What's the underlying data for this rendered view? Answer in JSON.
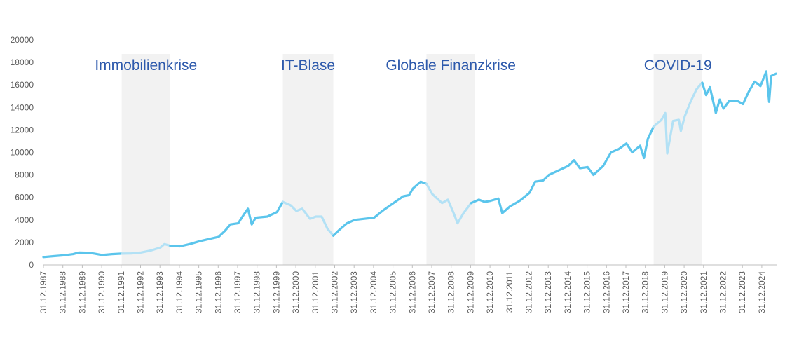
{
  "colors": {
    "line": "#5bc5ec",
    "line_crisis": "#b3e1f5",
    "band": "#f2f2f2",
    "label": "#2e5aac",
    "axis": "#bfbfbf",
    "tick_text": "#595959"
  },
  "chart_data": {
    "type": "line",
    "title": "",
    "xlabel": "",
    "ylabel": "",
    "ylim": [
      0,
      20000
    ],
    "y_ticks": [
      0,
      2000,
      4000,
      6000,
      8000,
      10000,
      12000,
      14000,
      16000,
      18000,
      20000
    ],
    "x_tick_labels": [
      "31.12.1987",
      "31.12.1988",
      "31.12.1989",
      "31.12.1990",
      "31.12.1991",
      "31.12.1992",
      "31.12.1993",
      "31.12.1994",
      "31.12.1995",
      "31.12.1996",
      "31.12.1997",
      "31.12.1998",
      "31.12.1999",
      "31.12.2000",
      "31.12.2001",
      "31.12.2002",
      "31.12.2003",
      "31.12.2004",
      "31.12.2005",
      "31.12.2006",
      "31.12.2007",
      "31.12.2008",
      "31.12.2009",
      "31.12.2010",
      "31.12.2011",
      "31.12.2012",
      "31.12.2013",
      "31.12.2014",
      "31.12.2015",
      "31.12.2016",
      "31.12.2017",
      "31.12.2018",
      "31.12.2019",
      "31.12.2020",
      "31.12.2021",
      "31.12.2022",
      "31.12.2023",
      "31.12.2024"
    ],
    "xlim": [
      1987.97,
      2025.7
    ],
    "grid": false,
    "crises": [
      {
        "label": "Immobilienkrise",
        "start": 1992.0,
        "end": 1994.5
      },
      {
        "label": "IT-Blase",
        "start": 2000.3,
        "end": 2002.9
      },
      {
        "label": "Globale Finanzkrise",
        "start": 2007.7,
        "end": 2010.2
      },
      {
        "label": "COVID-19",
        "start": 2019.4,
        "end": 2021.9
      }
    ],
    "series": [
      {
        "points": [
          [
            1987.97,
            700
          ],
          [
            1988.5,
            780
          ],
          [
            1989.0,
            850
          ],
          [
            1989.5,
            960
          ],
          [
            1989.8,
            1100
          ],
          [
            1990.3,
            1080
          ],
          [
            1990.6,
            1000
          ],
          [
            1991.0,
            880
          ],
          [
            1991.5,
            960
          ],
          [
            1992.0,
            1000
          ],
          [
            1992.5,
            1020
          ],
          [
            1993.0,
            1100
          ],
          [
            1993.5,
            1280
          ],
          [
            1994.0,
            1550
          ],
          [
            1994.2,
            1850
          ],
          [
            1994.5,
            1700
          ],
          [
            1995.0,
            1650
          ],
          [
            1995.5,
            1850
          ],
          [
            1996.0,
            2100
          ],
          [
            1996.5,
            2300
          ],
          [
            1997.0,
            2500
          ],
          [
            1997.3,
            3000
          ],
          [
            1997.6,
            3600
          ],
          [
            1998.0,
            3700
          ],
          [
            1998.3,
            4500
          ],
          [
            1998.5,
            5000
          ],
          [
            1998.7,
            3600
          ],
          [
            1998.9,
            4200
          ],
          [
            1999.5,
            4300
          ],
          [
            2000.0,
            4700
          ],
          [
            2000.3,
            5600
          ],
          [
            2000.7,
            5300
          ],
          [
            2001.0,
            4800
          ],
          [
            2001.3,
            5000
          ],
          [
            2001.7,
            4100
          ],
          [
            2002.0,
            4300
          ],
          [
            2002.3,
            4300
          ],
          [
            2002.6,
            3200
          ],
          [
            2002.9,
            2600
          ],
          [
            2003.2,
            3100
          ],
          [
            2003.6,
            3700
          ],
          [
            2004.0,
            4000
          ],
          [
            2004.5,
            4100
          ],
          [
            2005.0,
            4200
          ],
          [
            2005.5,
            4900
          ],
          [
            2006.0,
            5500
          ],
          [
            2006.5,
            6100
          ],
          [
            2006.8,
            6200
          ],
          [
            2007.0,
            6800
          ],
          [
            2007.4,
            7400
          ],
          [
            2007.7,
            7200
          ],
          [
            2008.0,
            6300
          ],
          [
            2008.5,
            5500
          ],
          [
            2008.8,
            5800
          ],
          [
            2009.1,
            4600
          ],
          [
            2009.3,
            3700
          ],
          [
            2009.6,
            4600
          ],
          [
            2010.0,
            5500
          ],
          [
            2010.4,
            5800
          ],
          [
            2010.7,
            5600
          ],
          [
            2011.0,
            5700
          ],
          [
            2011.4,
            5900
          ],
          [
            2011.6,
            4600
          ],
          [
            2012.0,
            5200
          ],
          [
            2012.5,
            5700
          ],
          [
            2013.0,
            6400
          ],
          [
            2013.3,
            7400
          ],
          [
            2013.7,
            7500
          ],
          [
            2014.0,
            8000
          ],
          [
            2014.5,
            8400
          ],
          [
            2015.0,
            8800
          ],
          [
            2015.3,
            9300
          ],
          [
            2015.6,
            8600
          ],
          [
            2016.0,
            8700
          ],
          [
            2016.3,
            8000
          ],
          [
            2016.8,
            8800
          ],
          [
            2017.2,
            10000
          ],
          [
            2017.6,
            10300
          ],
          [
            2018.0,
            10800
          ],
          [
            2018.3,
            10000
          ],
          [
            2018.7,
            10600
          ],
          [
            2018.9,
            9500
          ],
          [
            2019.1,
            11200
          ],
          [
            2019.4,
            12300
          ],
          [
            2019.8,
            12900
          ],
          [
            2020.0,
            13500
          ],
          [
            2020.1,
            9900
          ],
          [
            2020.4,
            12800
          ],
          [
            2020.7,
            12900
          ],
          [
            2020.8,
            11900
          ],
          [
            2021.0,
            13200
          ],
          [
            2021.3,
            14500
          ],
          [
            2021.6,
            15600
          ],
          [
            2021.9,
            16200
          ],
          [
            2022.1,
            15100
          ],
          [
            2022.3,
            15800
          ],
          [
            2022.6,
            13500
          ],
          [
            2022.8,
            14700
          ],
          [
            2023.0,
            13900
          ],
          [
            2023.3,
            14600
          ],
          [
            2023.7,
            14600
          ],
          [
            2024.0,
            14300
          ],
          [
            2024.3,
            15400
          ],
          [
            2024.6,
            16300
          ],
          [
            2024.9,
            15900
          ],
          [
            2025.2,
            17200
          ],
          [
            2025.35,
            14500
          ],
          [
            2025.45,
            16800
          ],
          [
            2025.7,
            17000
          ]
        ]
      }
    ]
  }
}
